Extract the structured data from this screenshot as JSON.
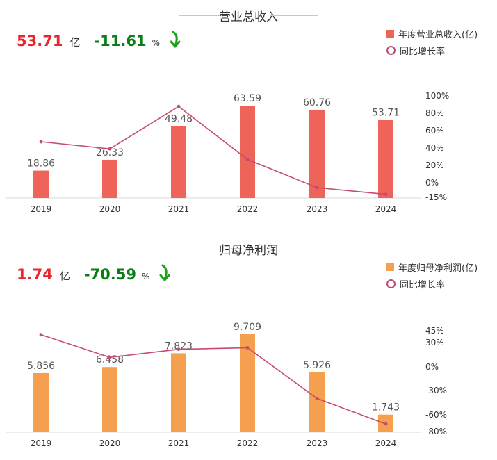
{
  "colors": {
    "revenue_bar": "#ee6458",
    "profit_bar": "#f5a04f",
    "growth_line": "#c54c6e",
    "headline_value": "#e8262b",
    "headline_change": "#0b7d16",
    "arrow_icon": "#1f9e1a"
  },
  "panels": [
    {
      "title": "营业总收入",
      "headline": {
        "value": "53.71",
        "unit": "亿",
        "change": "-11.61",
        "change_unit": "%",
        "trend": "down-arrow-icon"
      },
      "legend": {
        "bar": "年度营业总收入(亿)",
        "line": "同比增长率"
      }
    },
    {
      "title": "归母净利润",
      "headline": {
        "value": "1.74",
        "unit": "亿",
        "change": "-70.59",
        "change_unit": "%",
        "trend": "down-arrow-icon"
      },
      "legend": {
        "bar": "年度归母净利润(亿)",
        "line": "同比增长率"
      }
    }
  ],
  "chart_data": [
    {
      "type": "bar",
      "title": "营业总收入",
      "categories": [
        "2019",
        "2020",
        "2021",
        "2022",
        "2023",
        "2024"
      ],
      "series": [
        {
          "name": "年度营业总收入(亿)",
          "type": "bar",
          "values": [
            18.86,
            26.33,
            49.48,
            63.59,
            60.76,
            53.71
          ]
        },
        {
          "name": "同比增长率",
          "type": "line",
          "axis": "right",
          "values": [
            48,
            40,
            88,
            28,
            -4,
            -11.61
          ]
        }
      ],
      "data_labels": [
        "18.86",
        "26.33",
        "49.48",
        "63.59",
        "60.76",
        "53.71"
      ],
      "y2_ticks": [
        "100%",
        "80%",
        "60%",
        "40%",
        "20%",
        "0%",
        "-15%"
      ],
      "y2lim": [
        -15,
        100
      ],
      "ylim": [
        0,
        63.59
      ],
      "legend_position": "top-right",
      "grid": false
    },
    {
      "type": "bar",
      "title": "归母净利润",
      "categories": [
        "2019",
        "2020",
        "2021",
        "2022",
        "2023",
        "2024"
      ],
      "series": [
        {
          "name": "年度归母净利润(亿)",
          "type": "bar",
          "values": [
            5.856,
            6.458,
            7.823,
            9.709,
            5.926,
            1.743
          ]
        },
        {
          "name": "同比增长率",
          "type": "line",
          "axis": "right",
          "values": [
            40,
            12,
            22,
            24,
            -39,
            -70.59
          ]
        }
      ],
      "data_labels": [
        "5.856",
        "6.458",
        "7.823",
        "9.709",
        "5.926",
        "1.743"
      ],
      "y2_ticks": [
        "45%",
        "30%",
        "0%",
        "-30%",
        "-60%",
        "-80%"
      ],
      "y2lim": [
        -80,
        45
      ],
      "ylim": [
        0,
        9.709
      ],
      "legend_position": "top-right",
      "grid": false
    }
  ]
}
